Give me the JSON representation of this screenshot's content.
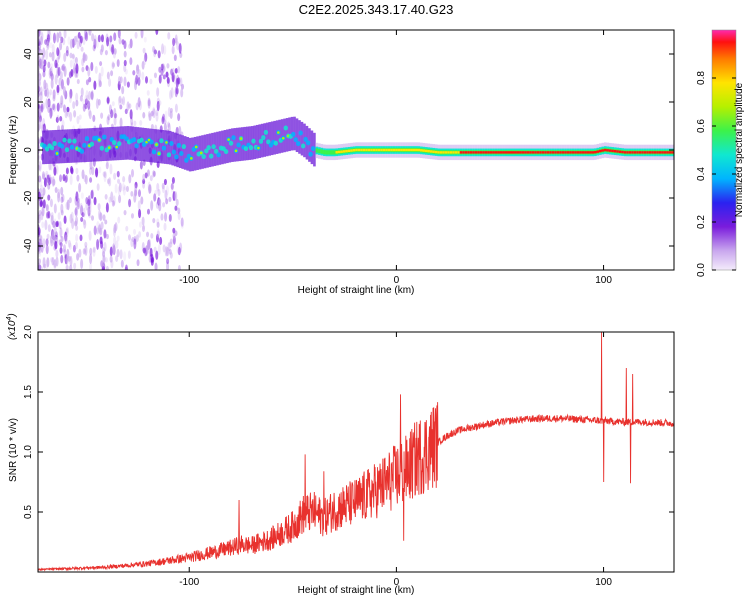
{
  "title": "C2E2.2025.343.17.40.G23",
  "chart_data": [
    {
      "type": "heatmap",
      "xlabel": "Height of straight line (km)",
      "ylabel": "Frequency (Hz)",
      "xlim": [
        -173,
        134
      ],
      "ylim": [
        -50,
        50
      ],
      "xticks": [
        -100,
        0,
        100
      ],
      "yticks": [
        -40,
        -20,
        0,
        20,
        40
      ],
      "xtick_labels": [
        "-100",
        "0",
        "100"
      ],
      "ytick_labels": [
        "-40",
        "-20",
        "0",
        "20",
        "40"
      ],
      "ridge": {
        "x": [
          -173,
          -150,
          -130,
          -110,
          -100,
          -90,
          -80,
          -70,
          -60,
          -50,
          -45,
          -40,
          -35,
          -30,
          -20,
          -10,
          0,
          10,
          20,
          40,
          60,
          80,
          95,
          100,
          110,
          120,
          134
        ],
        "freq": [
          1,
          2,
          3,
          1,
          -2,
          0,
          2,
          3,
          5,
          7,
          4,
          0,
          -1,
          -1,
          0,
          0,
          0,
          0,
          -1,
          -1,
          -1,
          -1,
          -1,
          0,
          -1,
          -1,
          -1
        ]
      },
      "colorbar": {
        "label": "Normalized spectral amplitude",
        "ticks": [
          0.0,
          0.2,
          0.4,
          0.6,
          0.8
        ],
        "tick_labels": [
          "0.0",
          "0.2",
          "0.4",
          "0.6",
          "0.8"
        ],
        "range": [
          0,
          1
        ]
      }
    },
    {
      "type": "line",
      "xlabel": "Height of straight line (km)",
      "ylabel": "SNR (10 * v/v)",
      "scale_note": "(x10",
      "scale_exp": "4",
      "scale_close": ")",
      "xlim": [
        -173,
        134
      ],
      "ylim": [
        0,
        2.0
      ],
      "xticks": [
        -100,
        0,
        100
      ],
      "yticks": [
        0.5,
        1.0,
        1.5,
        2.0
      ],
      "xtick_labels": [
        "-100",
        "0",
        "100"
      ],
      "ytick_labels": [
        "0.5",
        "1.0",
        "1.5",
        "2.0"
      ],
      "series_color": "#e8312d",
      "envelope": {
        "x": [
          -173,
          -140,
          -120,
          -100,
          -90,
          -80,
          -75,
          -70,
          -60,
          -50,
          -45,
          -40,
          -35,
          -30,
          -20,
          -10,
          0,
          5,
          10,
          20,
          25,
          30,
          40,
          50,
          60,
          70,
          80,
          90,
          100,
          110,
          120,
          134
        ],
        "y": [
          0.02,
          0.04,
          0.07,
          0.12,
          0.16,
          0.2,
          0.23,
          0.22,
          0.28,
          0.38,
          0.48,
          0.5,
          0.45,
          0.52,
          0.58,
          0.68,
          0.8,
          0.85,
          0.95,
          1.08,
          1.14,
          1.18,
          1.22,
          1.25,
          1.27,
          1.28,
          1.28,
          1.27,
          1.26,
          1.25,
          1.25,
          1.24
        ]
      },
      "spikes": [
        {
          "x": -76,
          "y": 0.6
        },
        {
          "x": -44,
          "y": 0.98
        },
        {
          "x": -35,
          "y": 0.84
        },
        {
          "x": 2,
          "y": 1.48
        },
        {
          "x": 3.5,
          "y": 0.26
        },
        {
          "x": 99,
          "y": 2.0
        },
        {
          "x": 100,
          "y": 0.75
        },
        {
          "x": 111,
          "y": 1.7
        },
        {
          "x": 113,
          "y": 0.74
        },
        {
          "x": 114,
          "y": 1.65
        }
      ]
    }
  ]
}
